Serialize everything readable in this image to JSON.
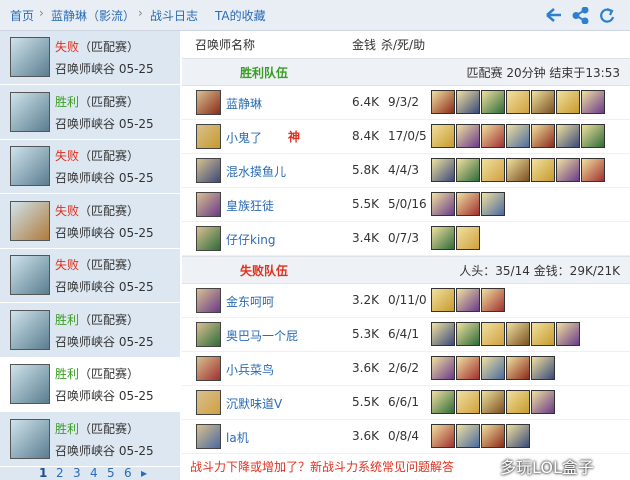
{
  "breadcrumb": [
    "首页",
    "蓝静琳（影流）",
    "战斗日志",
    "TA的收藏"
  ],
  "matches": [
    {
      "result": "失败",
      "mode": "（匹配赛）",
      "map": "召唤师峡谷 05-25"
    },
    {
      "result": "胜利",
      "mode": "（匹配赛）",
      "map": "召唤师峡谷 05-25"
    },
    {
      "result": "失败",
      "mode": "（匹配赛）",
      "map": "召唤师峡谷 05-25"
    },
    {
      "result": "失败",
      "mode": "（匹配赛）",
      "map": "召唤师峡谷 05-25"
    },
    {
      "result": "失败",
      "mode": "（匹配赛）",
      "map": "召唤师峡谷 05-25"
    },
    {
      "result": "胜利",
      "mode": "（匹配赛）",
      "map": "召唤师峡谷 05-25"
    },
    {
      "result": "胜利",
      "mode": "（匹配赛）",
      "map": "召唤师峡谷 05-25"
    },
    {
      "result": "胜利",
      "mode": "（匹配赛）",
      "map": "召唤师峡谷 05-25"
    }
  ],
  "pagination": [
    "1",
    "2",
    "3",
    "4",
    "5",
    "6"
  ],
  "table": {
    "columns": [
      "召唤师名称",
      "金钱",
      "杀/死/助"
    ],
    "teams": [
      {
        "name": "胜利队伍",
        "summary": "匹配赛 20分钟 结束于13:53",
        "players": [
          {
            "name": "蓝静琳",
            "gold": "6.4K",
            "kda": "9/3/2"
          },
          {
            "name": "小鬼了",
            "badge": "神",
            "gold": "8.4K",
            "kda": "17/0/5"
          },
          {
            "name": "混水摸鱼儿",
            "gold": "5.8K",
            "kda": "4/4/3"
          },
          {
            "name": "皇族狂徒",
            "gold": "5.5K",
            "kda": "5/0/16"
          },
          {
            "name": "仔仔king",
            "gold": "3.4K",
            "kda": "0/7/3"
          }
        ]
      },
      {
        "name": "失败队伍",
        "summary": "人头：35/14 金钱：29K/21K",
        "players": [
          {
            "name": "金东呵呵",
            "gold": "3.2K",
            "kda": "0/11/0"
          },
          {
            "name": "奥巴马一个屁",
            "gold": "5.3K",
            "kda": "6/4/1"
          },
          {
            "name": "小兵菜鸟",
            "gold": "3.6K",
            "kda": "2/6/2"
          },
          {
            "name": "沉默味道V",
            "gold": "5.5K",
            "kda": "6/6/1"
          },
          {
            "name": "la机",
            "gold": "3.6K",
            "kda": "0/8/4"
          }
        ]
      }
    ]
  },
  "footer": {
    "link": "战斗力下降或增加了？新战斗力系统常见问题解答",
    "watermark": "多玩LOL盒子"
  }
}
